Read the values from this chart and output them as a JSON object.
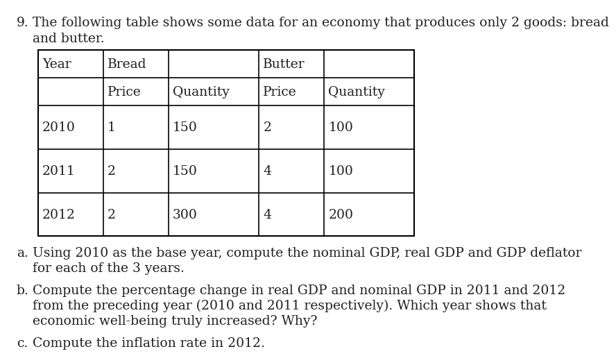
{
  "question_number": "9.",
  "question_line1": "The following table shows some data for an economy that produces only 2 goods: bread",
  "question_line2": "and butter.",
  "bg_color": "#ffffff",
  "text_color": "#231f20",
  "font_size": 13.5,
  "font_family": "DejaVu Serif",
  "table": {
    "header_row1_labels": [
      "Year",
      "Bread",
      "Butter"
    ],
    "header_row2_labels": [
      "Price",
      "Quantity",
      "Price",
      "Quantity"
    ],
    "data_rows": [
      [
        "2010",
        "1",
        "150",
        "2",
        "100"
      ],
      [
        "2011",
        "2",
        "150",
        "4",
        "100"
      ],
      [
        "2012",
        "2",
        "300",
        "4",
        "200"
      ]
    ]
  },
  "parts": [
    {
      "label": "a.",
      "lines": [
        "Using 2010 as the base year, compute the nominal GDP, real GDP and GDP deflator",
        "for each of the 3 years."
      ]
    },
    {
      "label": "b.",
      "lines": [
        "Compute the percentage change in real GDP and nominal GDP in 2011 and 2012",
        "from the preceding year (2010 and 2011 respectively). Which year shows that",
        "economic well-being truly increased? Why?"
      ]
    },
    {
      "label": "c.",
      "lines": [
        "Compute the inflation rate in 2012."
      ]
    }
  ]
}
